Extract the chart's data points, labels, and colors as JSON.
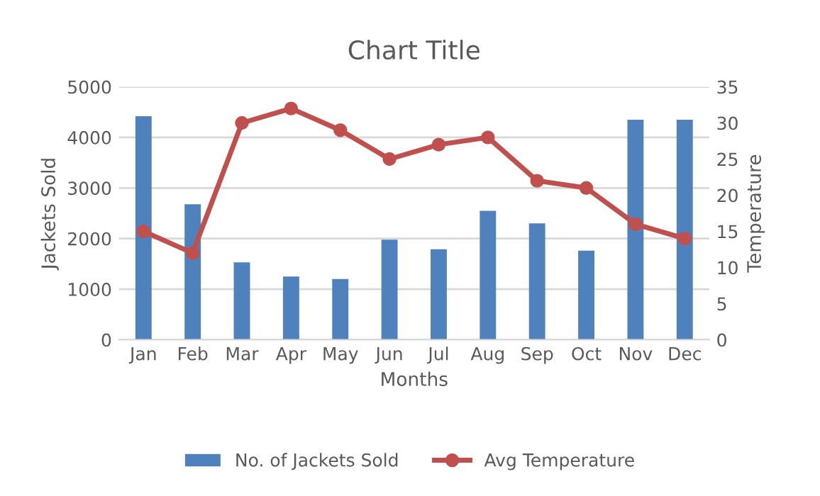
{
  "chart_data": {
    "type": "bar",
    "title": "Chart Title",
    "xlabel": "Months",
    "ylabel": "Jackets Sold",
    "y2label": "Temperature",
    "categories": [
      "Jan",
      "Feb",
      "Mar",
      "Apr",
      "May",
      "Jun",
      "Jul",
      "Aug",
      "Sep",
      "Oct",
      "Nov",
      "Dec"
    ],
    "series": [
      {
        "name": "No. of Jackets Sold",
        "color": "#4f81bd",
        "values": [
          4420,
          2680,
          1530,
          1250,
          1200,
          1980,
          1790,
          2550,
          2300,
          1760,
          4350,
          4350
        ]
      },
      {
        "name": "Avg Temperature",
        "type": "line",
        "axis": "y2",
        "color": "#c0504d",
        "marker": "circle",
        "values": [
          15,
          12,
          30,
          32,
          29,
          25,
          27,
          28,
          22,
          21,
          16,
          14
        ]
      }
    ],
    "ylim": [
      0,
      5000
    ],
    "yticks": [
      0,
      1000,
      2000,
      3000,
      4000,
      5000
    ],
    "y2lim": [
      0,
      35
    ],
    "y2ticks": [
      0,
      5,
      10,
      15,
      20,
      25,
      30,
      35
    ],
    "grid": "y",
    "legend": "bottom"
  }
}
